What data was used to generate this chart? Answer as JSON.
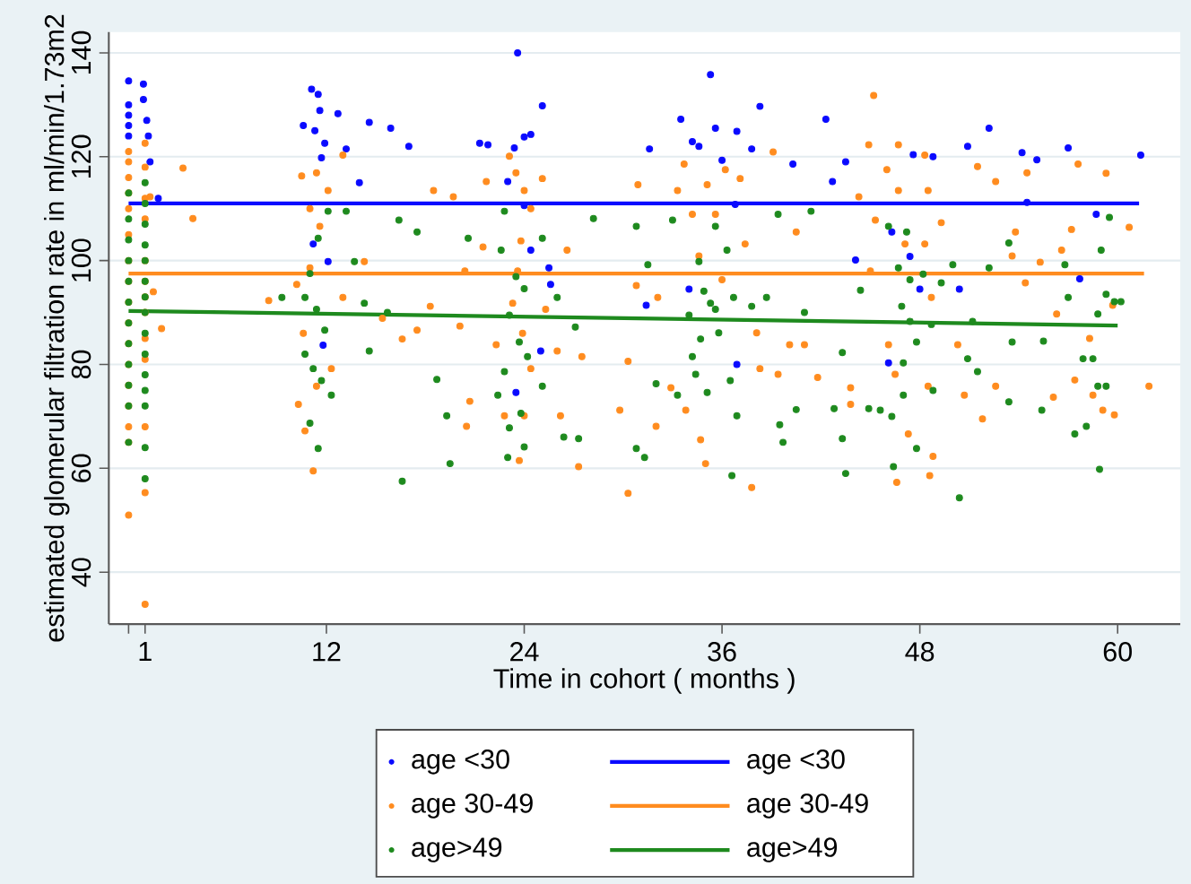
{
  "chart_data": {
    "type": "scatter",
    "xlabel": "Time in cohort ( months )",
    "ylabel": "estimated glomerular filtration rate in ml/min/1.73m2",
    "xlim": [
      -1.2,
      63.8
    ],
    "ylim": [
      30,
      144
    ],
    "xticks": [
      {
        "value": 0,
        "label": null
      },
      1,
      12,
      24,
      36,
      48,
      60
    ],
    "yticks": [
      40,
      60,
      80,
      100,
      120,
      140
    ],
    "grid": "y",
    "legend": "bottom",
    "line_style": "solid",
    "series": [
      {
        "name": "age <30",
        "color": "#0a0aff",
        "marker": "circle",
        "x": [
          0,
          0,
          0,
          0,
          0,
          0.9,
          0.9,
          1.1,
          1.2,
          1.3,
          1.8,
          10.6,
          11.1,
          11.5,
          11.6,
          11.3,
          11.9,
          11.7,
          12.7,
          13.2,
          14.6,
          14,
          15.9,
          17,
          21.3,
          21.8,
          23.6,
          23.4,
          24,
          24.4,
          25.1,
          23,
          24,
          24.4,
          25.5,
          25,
          23.5,
          11.8,
          11.2,
          12.1,
          25.6,
          35.3,
          33.5,
          34.2,
          34.6,
          35.6,
          36.9,
          38.3,
          36,
          37.8,
          40.3,
          31.6,
          42.3,
          42.7,
          43.5,
          36.8,
          44.1,
          46.3,
          47.6,
          48.8,
          50.9,
          52.2,
          54.2,
          55.1,
          57,
          54.5,
          58.7,
          61.4,
          57.7,
          48,
          46.1,
          36.9,
          50.4,
          47.4,
          34,
          31.4
        ],
        "values": [
          134.6,
          130,
          128,
          126,
          124,
          134,
          131,
          127,
          124,
          119,
          112,
          126,
          133,
          132,
          128.9,
          125,
          122.6,
          119.8,
          128.3,
          121.5,
          126.6,
          115,
          125.5,
          122,
          122.6,
          122.3,
          140,
          121.7,
          123.8,
          124.3,
          129.8,
          115.2,
          110.6,
          102,
          98.6,
          82.6,
          74.6,
          83.7,
          103.2,
          99.8,
          95.4,
          135.8,
          127.2,
          122.9,
          122,
          125.5,
          124.9,
          129.7,
          119.3,
          121.5,
          118.6,
          121.5,
          127.2,
          115.2,
          119,
          110.8,
          100.1,
          105.5,
          120.4,
          120,
          122,
          125.5,
          120.8,
          119.4,
          121.7,
          111.2,
          108.9,
          120.3,
          96.5,
          94.5,
          80.3,
          80,
          94.5,
          100.8,
          94.5,
          91.4
        ]
      },
      {
        "name": "age <30",
        "color": "#0a0aff",
        "type": "line",
        "x": [
          0,
          61.3
        ],
        "values": [
          111,
          111
        ]
      },
      {
        "name": "age 30-49",
        "color": "#ff8c1f",
        "marker": "circle",
        "x": [
          0,
          0,
          0,
          0,
          0,
          0,
          0,
          0,
          0,
          0,
          0,
          0,
          0,
          0,
          0,
          0,
          0,
          1,
          1,
          1,
          1,
          1,
          1,
          1,
          1,
          1,
          1,
          1,
          1,
          1,
          3.3,
          3.9,
          2,
          10.5,
          11,
          11.4,
          12.1,
          11.6,
          11,
          10.2,
          10.6,
          11.4,
          10.7,
          11.2,
          12.3,
          13,
          13,
          14.3,
          15.4,
          16.6,
          17.5,
          18.5,
          19.7,
          20.4,
          20.1,
          20.7,
          21.5,
          21.7,
          23.1,
          23.5,
          24,
          24.4,
          23.8,
          23.6,
          23.3,
          23.9,
          24.4,
          24,
          23.7,
          22.8,
          22.3,
          25.1,
          26.6,
          25.3,
          26,
          27.5,
          26.2,
          27.3,
          20.5,
          18.3,
          8.5,
          10.3,
          1.3,
          1.5,
          30.3,
          30.3,
          30.9,
          30.8,
          32.1,
          32,
          32.9,
          33.7,
          33.3,
          34.2,
          34.6,
          35.1,
          35.6,
          36.2,
          36,
          37.1,
          37.4,
          38.1,
          37.8,
          35,
          34.7,
          33.8,
          38.3,
          39.4,
          39.1,
          40.1,
          41,
          40.5,
          41.8,
          43.8,
          43.8,
          44.3,
          44.9,
          45.2,
          45.3,
          45,
          46,
          46.7,
          46.7,
          47.1,
          46.1,
          46.5,
          46.6,
          47.3,
          48.3,
          48.5,
          48.3,
          48.7,
          48.5,
          48.6,
          48.8,
          49.3,
          50.3,
          50.7,
          51.5,
          51.8,
          52.6,
          52.6,
          53.6,
          53.8,
          54.5,
          54.4,
          55.3,
          56.1,
          56.3,
          56.6,
          57.2,
          57.6,
          57.4,
          58.3,
          58.5,
          59.1,
          59.3,
          59.7,
          59.8,
          60.7,
          61.9,
          29.8
        ],
        "values": [
          121,
          119,
          116,
          113,
          110,
          105,
          100,
          96,
          92,
          88,
          84,
          80,
          76,
          72,
          68,
          65,
          51,
          122.6,
          118,
          112,
          108,
          100,
          96,
          93,
          90,
          85,
          81,
          68,
          55.3,
          33.8,
          117.8,
          108.1,
          86.9,
          116.3,
          110,
          116.9,
          113.5,
          106.6,
          98.6,
          95.4,
          86,
          75.8,
          67.2,
          59.5,
          79.2,
          92.9,
          120.3,
          99.8,
          88.9,
          84.9,
          86.6,
          113.5,
          112.3,
          98,
          87.4,
          72.9,
          102.6,
          115.2,
          120.1,
          116.9,
          113.5,
          110,
          103.8,
          98,
          91.8,
          86,
          79.2,
          70.1,
          61.5,
          70.1,
          83.8,
          115.8,
          102,
          90.6,
          82.6,
          81.5,
          70.1,
          60.3,
          68.1,
          91.2,
          92.3,
          72.3,
          112.3,
          94,
          55.2,
          80.6,
          114.6,
          95.2,
          92.9,
          68.1,
          75.5,
          118.6,
          113.5,
          108.9,
          100.9,
          114.6,
          108.9,
          117.5,
          96.3,
          115.8,
          103.2,
          86.1,
          56.3,
          60.9,
          65.5,
          71.2,
          79.2,
          78.1,
          120.9,
          83.8,
          83.8,
          105.5,
          77.5,
          75.5,
          72.3,
          112.3,
          122.3,
          131.8,
          107.8,
          98,
          117.5,
          122.3,
          113.5,
          103.2,
          83.8,
          78.1,
          57.3,
          66.6,
          120.3,
          113.5,
          103.2,
          92.9,
          75.8,
          58.6,
          62.3,
          107.3,
          83.8,
          74.1,
          118.1,
          69.5,
          115.2,
          75.8,
          100.9,
          105.5,
          116.9,
          95.7,
          99.7,
          73.7,
          89.7,
          102,
          106,
          118.6,
          77,
          85,
          74.1,
          71.2,
          116.8,
          91.4,
          70.3,
          106.4,
          75.8,
          71.2
        ]
      },
      {
        "name": "age 30-49",
        "color": "#ff8c1f",
        "type": "line",
        "x": [
          0,
          61.6
        ],
        "values": [
          97.5,
          97.5
        ]
      },
      {
        "name": "age>49",
        "color": "#1e8a1e",
        "marker": "circle",
        "x": [
          0,
          0,
          0,
          0,
          0,
          0,
          0,
          0,
          0,
          0,
          0,
          0,
          1,
          1,
          1,
          1,
          1,
          1,
          1,
          1,
          1,
          1,
          1,
          1,
          1,
          1,
          1,
          12.1,
          11.5,
          11,
          10.7,
          11.4,
          11.9,
          10.7,
          11.2,
          11.7,
          12.3,
          11,
          11.5,
          9.3,
          13.2,
          13.7,
          14.3,
          14.6,
          15.7,
          16.4,
          16.6,
          17.5,
          18.7,
          19.3,
          19.5,
          20.6,
          22.8,
          22.6,
          23.5,
          24,
          23.1,
          23.7,
          24.2,
          22.8,
          22.4,
          23.8,
          23.1,
          23,
          24,
          25.1,
          26,
          27.1,
          26.4,
          27.3,
          25.1,
          28.2,
          30.8,
          31.5,
          31.3,
          30.8,
          32,
          33.3,
          33,
          34,
          34.2,
          34.6,
          34.9,
          35.3,
          35.6,
          34.7,
          34.4,
          35.1,
          35.6,
          36.3,
          36.7,
          35.8,
          36.5,
          36.9,
          36.6,
          37.8,
          38.7,
          39.4,
          39.5,
          39.7,
          40.5,
          41,
          41.4,
          42.8,
          43.3,
          43.5,
          43.3,
          44.4,
          44.9,
          45.6,
          46.1,
          46.7,
          47.2,
          47.4,
          46.9,
          47.4,
          47.8,
          47,
          47,
          46.3,
          46.4,
          47.8,
          48.2,
          48.7,
          48.8,
          49.3,
          50,
          50.4,
          50.9,
          51.2,
          51.5,
          52.2,
          53.4,
          53.4,
          53.6,
          55.4,
          55.5,
          56.8,
          57,
          57.4,
          57.9,
          58.1,
          58.5,
          58.8,
          58.9,
          58.8,
          59,
          59.3,
          59.3,
          59.5,
          59.8,
          60.2
        ],
        "values": [
          113,
          108,
          104,
          100,
          96,
          92,
          88,
          84,
          80,
          76,
          72,
          65,
          115,
          111,
          107,
          103,
          100,
          96,
          93,
          90,
          86,
          82,
          78,
          75,
          72,
          64,
          58,
          109.5,
          104.3,
          97.5,
          92.9,
          90.6,
          86.6,
          82,
          79.2,
          76.9,
          74.1,
          68.7,
          63.8,
          92.9,
          109.5,
          99.8,
          91.8,
          82.6,
          90,
          107.8,
          57.5,
          105.5,
          77.1,
          70.1,
          60.9,
          104.3,
          109.5,
          102,
          96.9,
          94.6,
          89.5,
          84.3,
          81.5,
          78.6,
          74.1,
          70.6,
          67.8,
          62.1,
          64.1,
          104.3,
          92.9,
          87.2,
          66,
          65.7,
          75.8,
          108.1,
          106.6,
          99.2,
          62.1,
          63.8,
          76.3,
          74.1,
          107.8,
          89.5,
          81.5,
          99.8,
          94.1,
          91.8,
          90.6,
          84.9,
          78.1,
          74.6,
          106.6,
          102,
          92.9,
          86.1,
          76.9,
          70.1,
          58.6,
          91.2,
          92.9,
          108.9,
          68.4,
          65,
          71.3,
          90,
          109.5,
          71.5,
          65.7,
          59,
          82.3,
          94.3,
          71.5,
          71.2,
          106.6,
          98.6,
          105.5,
          96.3,
          91.2,
          88.3,
          84.3,
          80.3,
          74.1,
          70,
          60.3,
          63.8,
          97.4,
          87.7,
          75,
          95.7,
          99.2,
          54.3,
          81.1,
          88.3,
          78.6,
          98.6,
          103.4,
          72.8,
          84.3,
          71.2,
          84.5,
          99.2,
          92.9,
          66.6,
          81.1,
          68.1,
          81.1,
          75.8,
          59.8,
          89.7,
          102,
          75.8,
          93.5,
          108.3,
          92.1,
          92.1
        ]
      },
      {
        "name": "age>49",
        "color": "#1e8a1e",
        "type": "line",
        "x": [
          0,
          60
        ],
        "values": [
          90.3,
          87.5
        ]
      }
    ]
  }
}
